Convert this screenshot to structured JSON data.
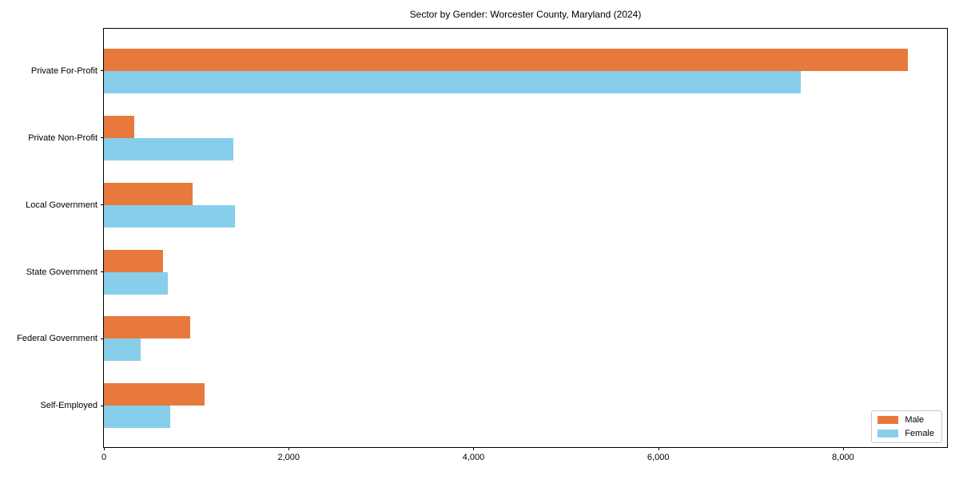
{
  "title": "Sector by Gender: Worcester County, Maryland (2024)",
  "colors": {
    "male": "#E8793D",
    "female": "#87CEEB",
    "spine": "#000000",
    "legend_border": "#c9c9c9"
  },
  "chart_data": {
    "type": "bar",
    "orientation": "horizontal",
    "title": "Sector by Gender: Worcester County, Maryland (2024)",
    "categories": [
      "Private For-Profit",
      "Private Non-Profit",
      "Local Government",
      "State Government",
      "Federal Government",
      "Self-Employed"
    ],
    "series": [
      {
        "name": "Male",
        "color": "#E8793D",
        "values": [
          8700,
          330,
          960,
          640,
          930,
          1090
        ]
      },
      {
        "name": "Female",
        "color": "#87CEEB",
        "values": [
          7540,
          1400,
          1420,
          690,
          400,
          720
        ]
      }
    ],
    "xlabel": "",
    "ylabel": "",
    "xlim": [
      0,
      9125
    ],
    "x_ticks": [
      0,
      2000,
      4000,
      6000,
      8000
    ],
    "x_tick_labels": [
      "0",
      "2,000",
      "4,000",
      "6,000",
      "8,000"
    ],
    "grid": false,
    "legend_position": "lower right"
  },
  "legend": {
    "items": [
      {
        "label": "Male",
        "color": "#E8793D"
      },
      {
        "label": "Female",
        "color": "#87CEEB"
      }
    ]
  }
}
